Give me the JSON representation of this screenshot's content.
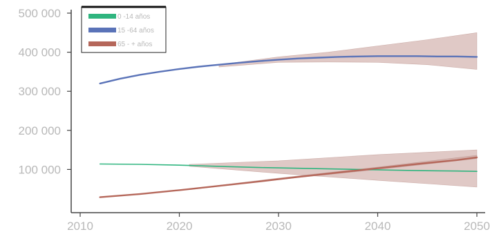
{
  "chart_data": {
    "type": "line",
    "x_ticks": [
      2010,
      2020,
      2030,
      2040,
      2050
    ],
    "y_ticks": [
      {
        "value": 100000,
        "label": "100 000"
      },
      {
        "value": 200000,
        "label": "200 000"
      },
      {
        "value": 300000,
        "label": "300 000"
      },
      {
        "value": 400000,
        "label": "400 000"
      },
      {
        "value": 500000,
        "label": "500 000"
      }
    ],
    "xlim": [
      2010,
      2050
    ],
    "ylim": [
      0,
      500000
    ],
    "grid": false,
    "legend_position": "top-left",
    "series": [
      {
        "name": "0 -14 años",
        "color": "#2fb57f",
        "x": [
          2012,
          2016,
          2020,
          2024,
          2028,
          2032,
          2036,
          2040,
          2044,
          2048,
          2050
        ],
        "y": [
          114000,
          113000,
          111000,
          108000,
          105000,
          103000,
          101000,
          99000,
          97000,
          96000,
          95000
        ],
        "band_x": [
          2021,
          2030,
          2040,
          2050
        ],
        "band_low": [
          108000,
          90000,
          72000,
          55000
        ],
        "band_high": [
          113000,
          122000,
          138000,
          150000
        ]
      },
      {
        "name": "15 -64 años",
        "color": "#5a73b8",
        "x": [
          2012,
          2014,
          2016,
          2018,
          2020,
          2022,
          2024,
          2026,
          2028,
          2030,
          2032,
          2034,
          2036,
          2038,
          2040,
          2042,
          2044,
          2046,
          2048,
          2050
        ],
        "y": [
          320000,
          332000,
          342000,
          350000,
          357000,
          363000,
          368000,
          373000,
          377000,
          381000,
          384000,
          386000,
          388000,
          389000,
          390000,
          390000,
          390000,
          389000,
          389000,
          388000
        ],
        "band_x": [
          2024,
          2030,
          2035,
          2040,
          2045,
          2050
        ],
        "band_low": [
          362000,
          374000,
          375000,
          374000,
          368000,
          356000
        ],
        "band_high": [
          368000,
          388000,
          400000,
          416000,
          432000,
          450000
        ]
      },
      {
        "name": "65 - + años",
        "color": "#b5675a",
        "x": [
          2012,
          2016,
          2020,
          2024,
          2028,
          2032,
          2036,
          2040,
          2044,
          2048,
          2050
        ],
        "y": [
          29000,
          37000,
          47000,
          58000,
          69000,
          81000,
          92000,
          103000,
          114000,
          124000,
          131000
        ],
        "band_x": [
          2021,
          2030,
          2040,
          2050
        ],
        "band_low": [
          48000,
          74000,
          100000,
          128000
        ],
        "band_high": [
          50000,
          78000,
          106000,
          136000
        ]
      }
    ]
  }
}
